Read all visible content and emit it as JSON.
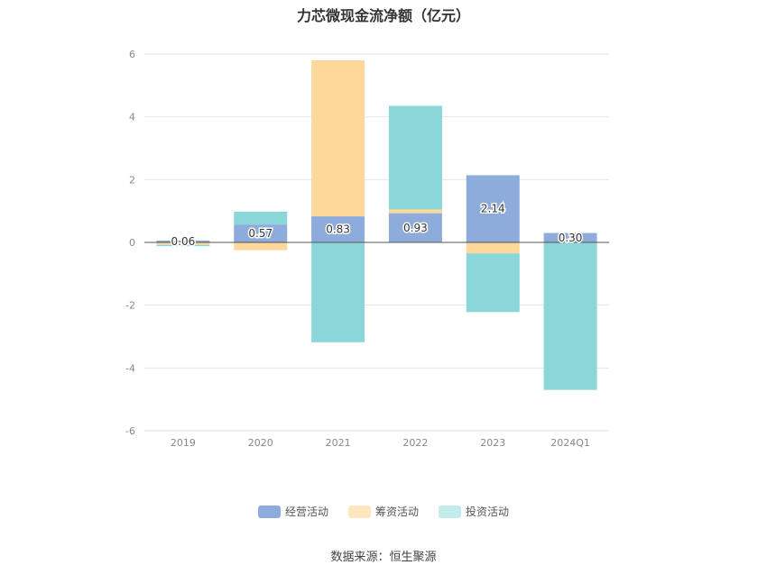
{
  "chart_data": {
    "type": "bar",
    "stacked": true,
    "title": "力芯微现金流净额（亿元）",
    "categories": [
      "2019",
      "2020",
      "2021",
      "2022",
      "2023",
      "2024Q1"
    ],
    "series": [
      {
        "name": "经营活动",
        "color": "#8eacdb",
        "values": [
          0.06,
          0.57,
          0.83,
          0.93,
          2.14,
          0.3
        ]
      },
      {
        "name": "筹资活动",
        "color": "#fdd89a",
        "values": [
          -0.08,
          -0.25,
          4.97,
          0.12,
          -0.35,
          0.0
        ]
      },
      {
        "name": "投资活动",
        "color": "#8ad6d9",
        "values": [
          -0.04,
          0.41,
          -3.18,
          3.3,
          -1.87,
          -4.7
        ]
      }
    ],
    "data_labels": [
      "0.06",
      "0.57",
      "0.83",
      "0.93",
      "2.14",
      "0.30"
    ],
    "ylim": [
      -6,
      6
    ],
    "yticks": [
      6,
      4,
      2,
      0,
      -2,
      -4,
      -6
    ],
    "grid": true,
    "legend_position": "bottom"
  },
  "legend": [
    {
      "label": "经营活动",
      "color": "#8eacdb"
    },
    {
      "label": "筹资活动",
      "color": "#fdd89a"
    },
    {
      "label": "投资活动",
      "color": "#c3ebec"
    }
  ],
  "source": "数据来源：恒生聚源"
}
